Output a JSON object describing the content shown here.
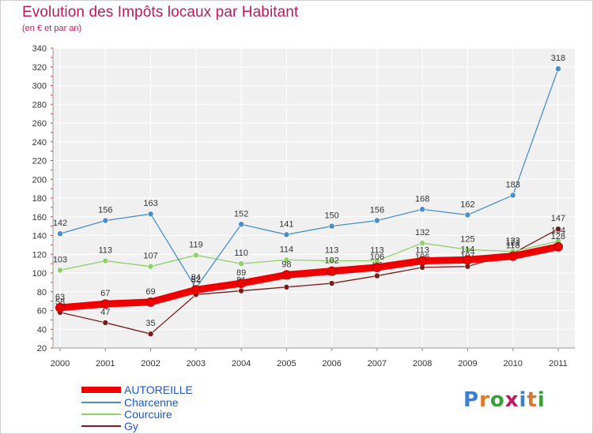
{
  "title": "Evolution des Impôts locaux par Habitant",
  "subtitle": "(en € et par an)",
  "brand": {
    "text": "Proxiti",
    "letter_colors": [
      "#3a7fd0",
      "#e0742c",
      "#3a9e3a",
      "#c2185b",
      "#3a7fd0",
      "#e0742c",
      "#3a9e3a"
    ]
  },
  "chart_data": {
    "type": "line",
    "title": "Evolution des Impôts locaux par Habitant",
    "subtitle": "(en € et par an)",
    "x": [
      "2000",
      "2001",
      "2002",
      "2003",
      "2004",
      "2005",
      "2006",
      "2007",
      "2008",
      "2009",
      "2010",
      "2011"
    ],
    "ylim": [
      20,
      340
    ],
    "yticks": [
      20,
      40,
      60,
      80,
      100,
      120,
      140,
      160,
      180,
      200,
      220,
      240,
      260,
      280,
      300,
      320,
      340
    ],
    "grid": true,
    "legend_position": "bottom-left",
    "series": [
      {
        "name": "Gy",
        "color": "#7a1c1c",
        "values": [
          58,
          47,
          35,
          77,
          81,
          85,
          89,
          97,
          106,
          107,
          121,
          147
        ]
      },
      {
        "name": "Courcuire",
        "color": "#8fd06a",
        "values": [
          103,
          113,
          107,
          119,
          110,
          114,
          113,
          113,
          132,
          125,
          123,
          134
        ]
      },
      {
        "name": "Charcenne",
        "color": "#4a8ec9",
        "values": [
          142,
          156,
          163,
          84,
          152,
          141,
          150,
          156,
          168,
          162,
          183,
          318
        ]
      },
      {
        "name": "AUTOREILLE",
        "color": "#ee0000",
        "values": [
          63,
          67,
          69,
          82,
          89,
          98,
          102,
          106,
          113,
          114,
          118,
          128
        ]
      }
    ],
    "legend_order": [
      "AUTOREILLE",
      "Charcenne",
      "Courcuire",
      "Gy"
    ]
  }
}
